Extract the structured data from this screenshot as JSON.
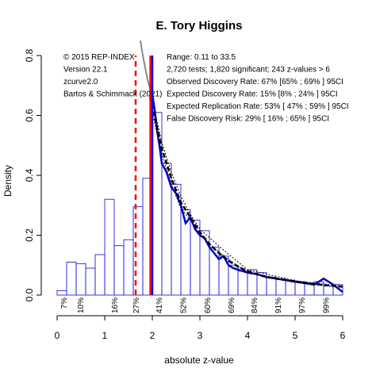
{
  "chart_data": {
    "type": "bar",
    "title": "E. Tory Higgins",
    "xlabel": "absolute z-value",
    "ylabel": "Density",
    "xlim": [
      0,
      6
    ],
    "ylim": [
      0,
      0.8
    ],
    "x_ticks": [
      0,
      1,
      2,
      3,
      4,
      5,
      6
    ],
    "y_ticks": [
      0.0,
      0.2,
      0.4,
      0.6,
      0.8
    ],
    "y_tick_labels": [
      "0.0",
      "0.2",
      "0.4",
      "0.6",
      "0.8"
    ],
    "bin_width": 0.2,
    "histogram": [
      {
        "x0": 0.0,
        "x1": 0.2,
        "density": 0.015
      },
      {
        "x0": 0.2,
        "x1": 0.4,
        "density": 0.11
      },
      {
        "x0": 0.4,
        "x1": 0.6,
        "density": 0.105
      },
      {
        "x0": 0.6,
        "x1": 0.8,
        "density": 0.09
      },
      {
        "x0": 0.8,
        "x1": 1.0,
        "density": 0.135
      },
      {
        "x0": 1.0,
        "x1": 1.2,
        "density": 0.32
      },
      {
        "x0": 1.2,
        "x1": 1.4,
        "density": 0.165
      },
      {
        "x0": 1.4,
        "x1": 1.6,
        "density": 0.185
      },
      {
        "x0": 1.6,
        "x1": 1.8,
        "density": 0.295
      },
      {
        "x0": 1.8,
        "x1": 2.0,
        "density": 0.39
      },
      {
        "x0": 2.0,
        "x1": 2.2,
        "density": 0.61
      },
      {
        "x0": 2.2,
        "x1": 2.4,
        "density": 0.44
      },
      {
        "x0": 2.4,
        "x1": 2.6,
        "density": 0.37
      },
      {
        "x0": 2.6,
        "x1": 2.8,
        "density": 0.285
      },
      {
        "x0": 2.8,
        "x1": 3.0,
        "density": 0.25
      },
      {
        "x0": 3.0,
        "x1": 3.2,
        "density": 0.215
      },
      {
        "x0": 3.2,
        "x1": 3.4,
        "density": 0.16
      },
      {
        "x0": 3.4,
        "x1": 3.6,
        "density": 0.13
      },
      {
        "x0": 3.6,
        "x1": 3.8,
        "density": 0.1
      },
      {
        "x0": 3.8,
        "x1": 4.0,
        "density": 0.08
      },
      {
        "x0": 4.0,
        "x1": 4.2,
        "density": 0.085
      },
      {
        "x0": 4.2,
        "x1": 4.4,
        "density": 0.075
      },
      {
        "x0": 4.4,
        "x1": 4.6,
        "density": 0.06
      },
      {
        "x0": 4.6,
        "x1": 4.8,
        "density": 0.055
      },
      {
        "x0": 4.8,
        "x1": 5.0,
        "density": 0.05
      },
      {
        "x0": 5.0,
        "x1": 5.2,
        "density": 0.045
      },
      {
        "x0": 5.2,
        "x1": 5.4,
        "density": 0.04
      },
      {
        "x0": 5.4,
        "x1": 5.6,
        "density": 0.045
      },
      {
        "x0": 5.6,
        "x1": 5.8,
        "density": 0.03
      },
      {
        "x0": 5.8,
        "x1": 6.0,
        "density": 0.035
      }
    ],
    "density_curve": {
      "x": [
        2.0,
        2.05,
        2.1,
        2.15,
        2.2,
        2.3,
        2.4,
        2.5,
        2.6,
        2.7,
        2.8,
        2.9,
        3.0,
        3.1,
        3.2,
        3.3,
        3.4,
        3.5,
        3.6,
        3.7,
        3.8,
        3.9,
        4.0,
        4.2,
        4.4,
        4.6,
        4.8,
        5.0,
        5.2,
        5.4,
        5.6,
        5.8,
        6.0
      ],
      "y": [
        0.67,
        0.62,
        0.55,
        0.5,
        0.44,
        0.41,
        0.36,
        0.34,
        0.3,
        0.24,
        0.26,
        0.22,
        0.2,
        0.19,
        0.16,
        0.14,
        0.12,
        0.13,
        0.1,
        0.09,
        0.085,
        0.08,
        0.075,
        0.07,
        0.06,
        0.055,
        0.05,
        0.045,
        0.04,
        0.035,
        0.055,
        0.035,
        0.01
      ]
    },
    "fitted_curve": {
      "x": [
        1.95,
        2.0,
        2.1,
        2.2,
        2.3,
        2.4,
        2.5,
        2.6,
        2.8,
        3.0,
        3.2,
        3.4,
        3.6,
        3.8,
        4.0,
        4.3,
        4.6,
        5.0,
        5.5,
        6.0
      ],
      "y": [
        0.66,
        0.63,
        0.56,
        0.49,
        0.44,
        0.39,
        0.35,
        0.31,
        0.26,
        0.21,
        0.17,
        0.14,
        0.115,
        0.095,
        0.08,
        0.065,
        0.055,
        0.045,
        0.035,
        0.028
      ]
    },
    "fitted_upper": {
      "x": [
        1.95,
        2.0,
        2.1,
        2.2,
        2.4,
        2.6,
        2.8,
        3.0,
        3.5,
        4.0,
        5.0,
        6.0
      ],
      "y": [
        0.68,
        0.65,
        0.58,
        0.51,
        0.41,
        0.33,
        0.27,
        0.22,
        0.15,
        0.085,
        0.048,
        0.03
      ]
    },
    "fitted_lower": {
      "x": [
        1.95,
        2.0,
        2.1,
        2.2,
        2.4,
        2.6,
        2.8,
        3.0,
        3.5,
        4.0,
        5.0,
        6.0
      ],
      "y": [
        0.64,
        0.61,
        0.54,
        0.47,
        0.37,
        0.29,
        0.25,
        0.2,
        0.13,
        0.075,
        0.042,
        0.026
      ]
    },
    "grey_curve": {
      "x": [
        1.75,
        1.8,
        1.85,
        1.9,
        1.95,
        2.0
      ],
      "y": [
        0.85,
        0.8,
        0.76,
        0.72,
        0.69,
        0.67
      ]
    },
    "vertical_lines": [
      {
        "x": 1.65,
        "color": "#ff0000",
        "style": "dashed"
      },
      {
        "x": 1.96,
        "color": "#ff0000",
        "style": "solid"
      },
      {
        "x": 2.0,
        "color": "#0000ff",
        "style": "solid"
      }
    ],
    "power_labels": [
      {
        "x": 0.13,
        "text": "7%"
      },
      {
        "x": 0.48,
        "text": "10%"
      },
      {
        "x": 1.2,
        "text": "16%"
      },
      {
        "x": 1.65,
        "text": "27%"
      },
      {
        "x": 2.13,
        "text": "41%"
      },
      {
        "x": 2.64,
        "text": "52%"
      },
      {
        "x": 3.15,
        "text": "60%"
      },
      {
        "x": 3.65,
        "text": "69%"
      },
      {
        "x": 4.13,
        "text": "84%"
      },
      {
        "x": 4.63,
        "text": "91%"
      },
      {
        "x": 5.13,
        "text": "97%"
      },
      {
        "x": 5.64,
        "text": "99%"
      }
    ],
    "annotations_left": [
      "© 2015 REP-INDEX",
      "Version 22.1",
      "zcurve2.0",
      "Bartos & Schimmack (2021)"
    ],
    "annotations_right": [
      "Range: 0.11 to 33.5",
      "2,720 tests; 1,820 significant; 243 z-values > 6",
      "Observed Discovery Rate: 67% [65% ; 69% ] 95CI",
      "Expected Discovery Rate: 15% [8% ; 24% ] 95CI",
      "Expected Replication Rate: 53% [ 47% ; 59% ] 95CI",
      "False Discovery Risk: 29% [ 16% ; 65% ] 95CI"
    ],
    "colors": {
      "bars": "#2020dd",
      "density": "#0000cc",
      "fit": "#000000",
      "threshold": "#ff0000",
      "grey": "#888888"
    }
  }
}
